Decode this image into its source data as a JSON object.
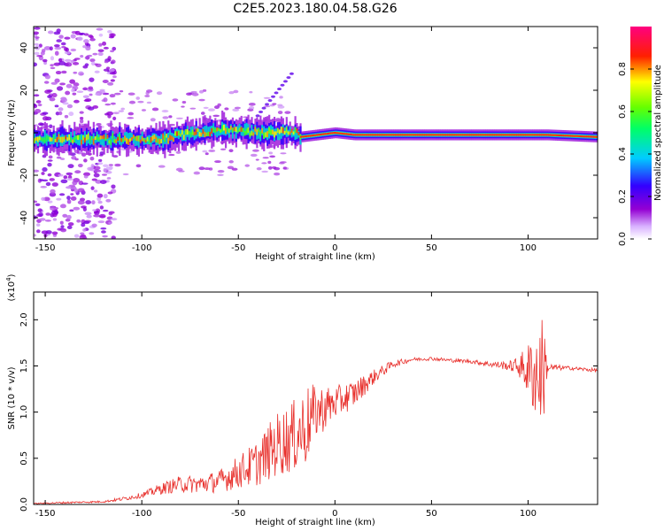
{
  "title": "C2E5.2023.180.04.58.G26",
  "chart_data": [
    {
      "type": "heatmap",
      "xlabel": "Height of straight line (km)",
      "ylabel": "Frequency (Hz)",
      "xlim": [
        -156,
        136
      ],
      "ylim": [
        -50,
        50
      ],
      "xticks": [
        -150,
        -100,
        -50,
        0,
        50,
        100
      ],
      "yticks": [
        -40,
        -20,
        0,
        20,
        40
      ],
      "colorbar": {
        "label": "Normalized spectral amplitude",
        "range": [
          0,
          1
        ],
        "ticks": [
          0.0,
          0.2,
          0.4,
          0.6,
          0.8
        ],
        "colors": [
          "#ffffff",
          "#9400d3",
          "#3300ff",
          "#00ccff",
          "#00ff33",
          "#ffff00",
          "#ff0000",
          "#ff0080"
        ]
      },
      "ridge": {
        "description_free": "",
        "x": [
          -156,
          -140,
          -120,
          -100,
          -90,
          -80,
          -70,
          -60,
          -50,
          -40,
          -30,
          -20,
          -18,
          0,
          10,
          30,
          50,
          80,
          100,
          110,
          136
        ],
        "freq": [
          -3,
          -3,
          -3,
          -3,
          -3,
          -1,
          0,
          1,
          1,
          0,
          0,
          0,
          -2,
          0,
          -1,
          -1,
          -1,
          -1,
          -1,
          -1,
          -2
        ]
      }
    },
    {
      "type": "line",
      "xlabel": "Height of straight line (km)",
      "ylabel": "SNR (10 * v/v)",
      "yunit": "(x10",
      "yunit_exp": "4",
      "yunit_close": ")",
      "xlim": [
        -156,
        136
      ],
      "ylim": [
        0,
        2.3
      ],
      "xticks": [
        -150,
        -100,
        -50,
        0,
        50,
        100
      ],
      "yticks": [
        0.0,
        0.5,
        1.0,
        1.5,
        2.0
      ],
      "ytick_labels": [
        "0.0",
        "0.5",
        "1.0",
        "1.5",
        "2.0"
      ],
      "color": "#e8302c",
      "series": [
        {
          "x": [
            -156,
            -140,
            -120,
            -110,
            -100,
            -90,
            -80,
            -70,
            -60,
            -50,
            -40,
            -30,
            -20,
            -15,
            -10,
            0,
            10,
            20,
            30,
            40,
            50,
            60,
            70,
            80,
            90,
            95,
            100,
            105,
            108,
            110,
            120,
            136
          ],
          "y": [
            0.01,
            0.02,
            0.03,
            0.06,
            0.1,
            0.17,
            0.22,
            0.22,
            0.25,
            0.35,
            0.45,
            0.65,
            0.75,
            0.85,
            1.0,
            1.1,
            1.2,
            1.38,
            1.52,
            1.57,
            1.58,
            1.56,
            1.55,
            1.52,
            1.5,
            1.5,
            1.45,
            1.4,
            1.48,
            1.48,
            1.48,
            1.45
          ],
          "noise": [
            0.005,
            0.01,
            0.01,
            0.02,
            0.03,
            0.06,
            0.09,
            0.1,
            0.12,
            0.18,
            0.25,
            0.35,
            0.4,
            0.45,
            0.3,
            0.18,
            0.15,
            0.08,
            0.04,
            0.02,
            0.02,
            0.02,
            0.02,
            0.03,
            0.05,
            0.1,
            0.3,
            0.55,
            0.6,
            0.05,
            0.02,
            0.02
          ]
        }
      ]
    }
  ]
}
